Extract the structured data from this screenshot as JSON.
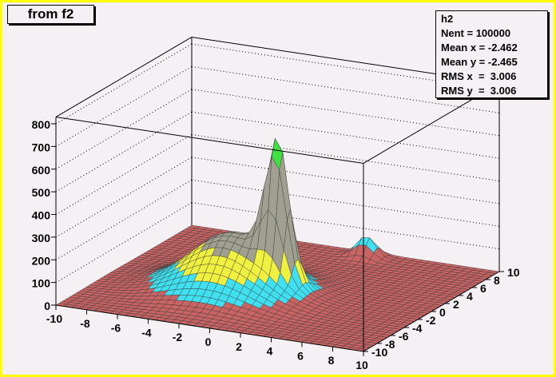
{
  "title": "from f2",
  "stats": {
    "name": "h2",
    "lines": [
      "Nent = 100000",
      "Mean x = -2.462",
      "Mean y = -2.465",
      "RMS x  =  3.006",
      "RMS y  =  3.006"
    ]
  },
  "colors": {
    "background": "#f4f0f4",
    "frame": "#ffff00",
    "floor": "#c86464",
    "levels": [
      "#c86464",
      "#40e0f0",
      "#f0f040",
      "#a0a090",
      "#40e040",
      "#ff2020"
    ]
  },
  "chart_data": {
    "type": "heatmap",
    "style": "lego/surface 3D",
    "xlim": [
      -10,
      10
    ],
    "ylim": [
      -10,
      10
    ],
    "zlim": [
      0,
      800
    ],
    "x_ticks": [
      "-10",
      "-8",
      "-6",
      "-4",
      "-2",
      "0",
      "2",
      "4",
      "6",
      "8",
      "10"
    ],
    "y_ticks": [
      "-10",
      "-8",
      "-6",
      "-4",
      "-2",
      "0",
      "2",
      "4",
      "6",
      "8",
      "10"
    ],
    "z_ticks": [
      "0",
      "100",
      "200",
      "300",
      "400",
      "500",
      "600",
      "700",
      "800"
    ],
    "grid": true
  }
}
